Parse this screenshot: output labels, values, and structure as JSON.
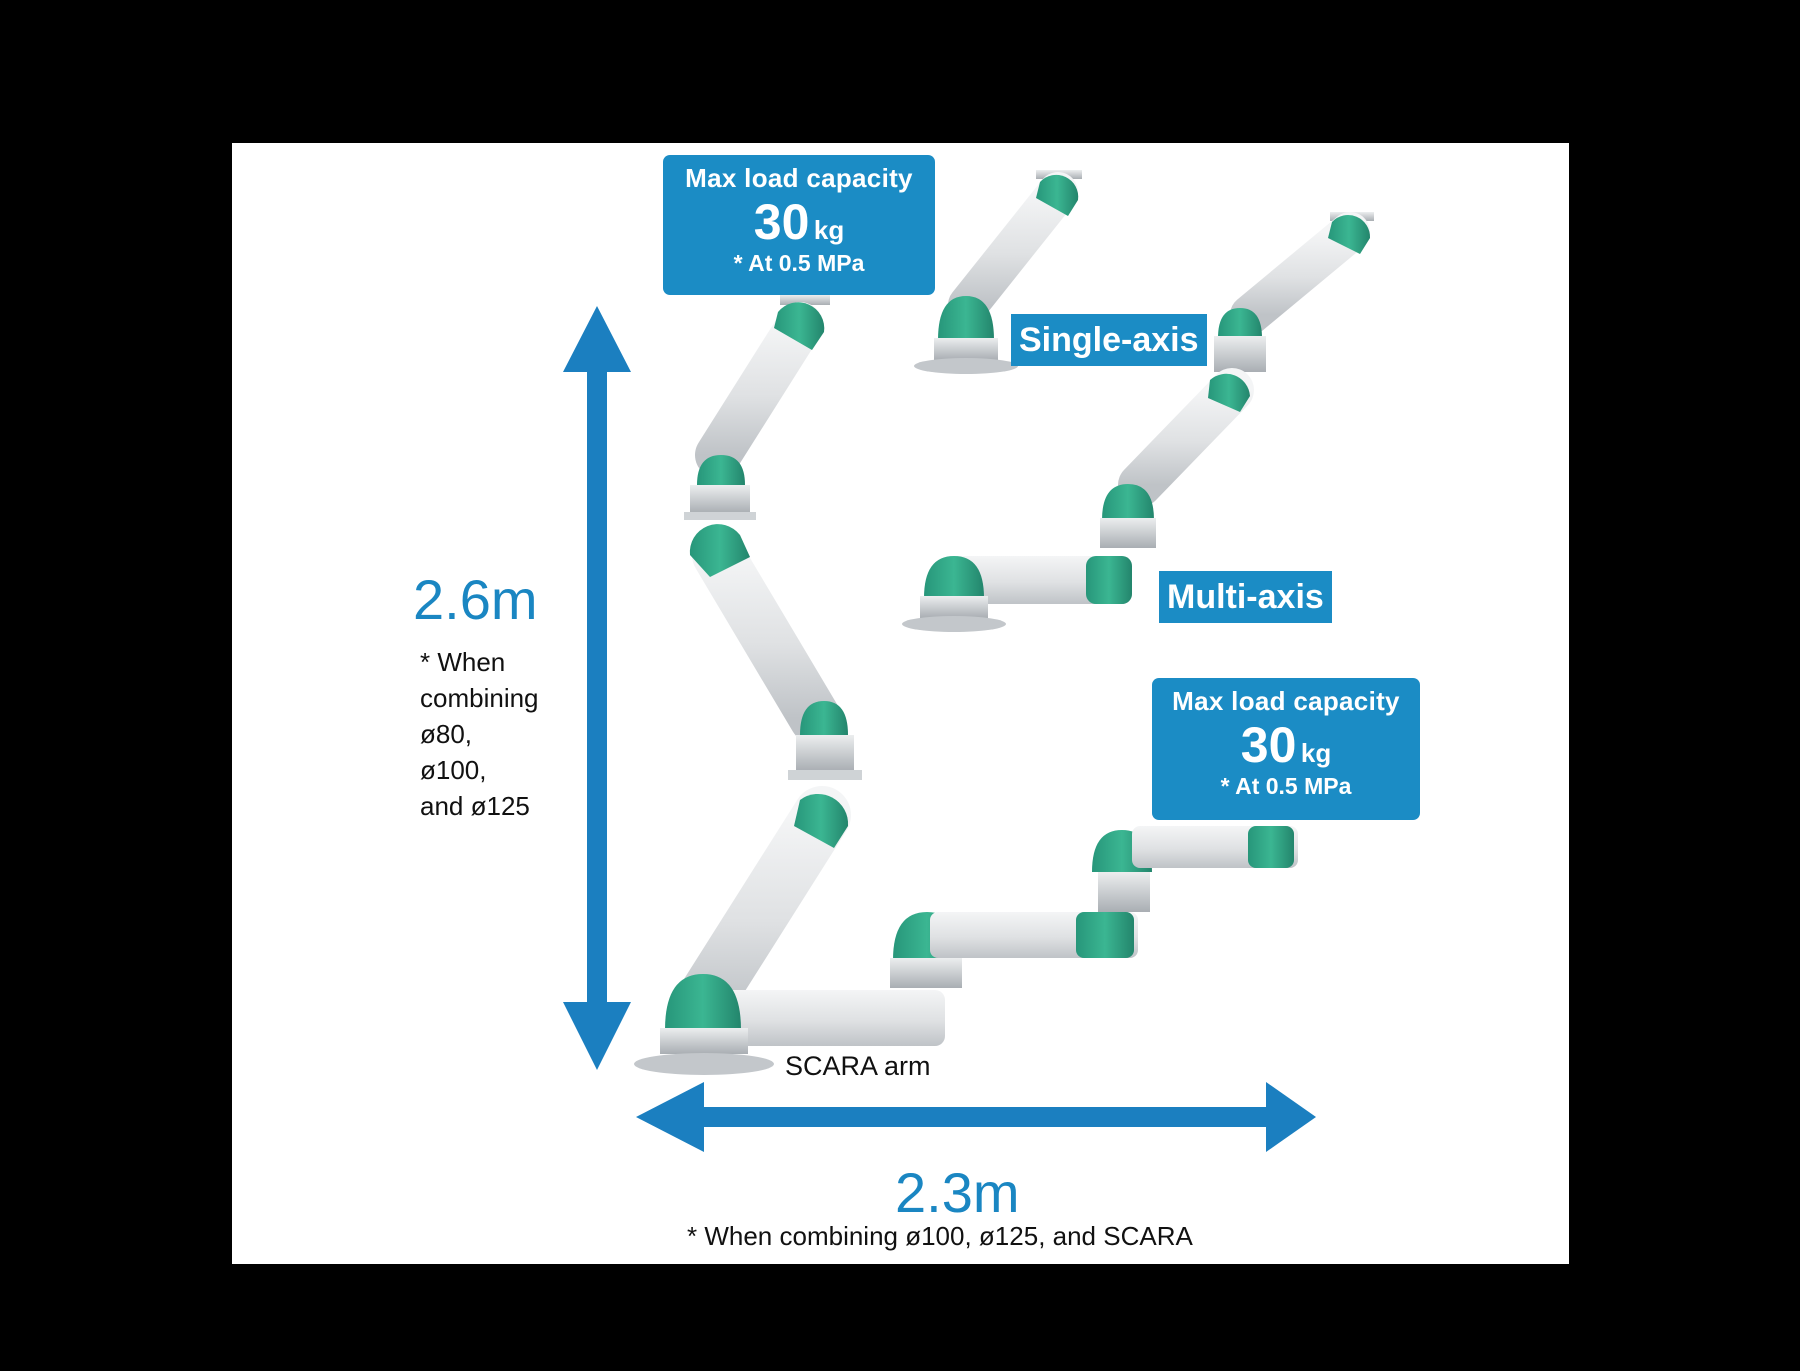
{
  "callout_top": {
    "heading": "Max load capacity",
    "value": "30",
    "unit": "kg",
    "note": "* At 0.5 MPa"
  },
  "callout_bottom": {
    "heading": "Max load capacity",
    "value": "30",
    "unit": "kg",
    "note": "* At 0.5 MPa"
  },
  "labels": {
    "single_axis": "Single-axis",
    "multi_axis": "Multi-axis",
    "scara": "SCARA arm"
  },
  "height_dimension": {
    "value": "2.6m",
    "note_lines": [
      "* When",
      "combining",
      "ø80,",
      "ø100,",
      "and ø125"
    ]
  },
  "width_dimension": {
    "value": "2.3m",
    "note": "* When combining ø100, ø125, and SCARA"
  },
  "colors": {
    "accent_blue": "#1b8cc5",
    "joint_green": "#2fa483",
    "arm_gray": "#e2e4e6",
    "background": "#ffffff",
    "frame": "#000000"
  }
}
